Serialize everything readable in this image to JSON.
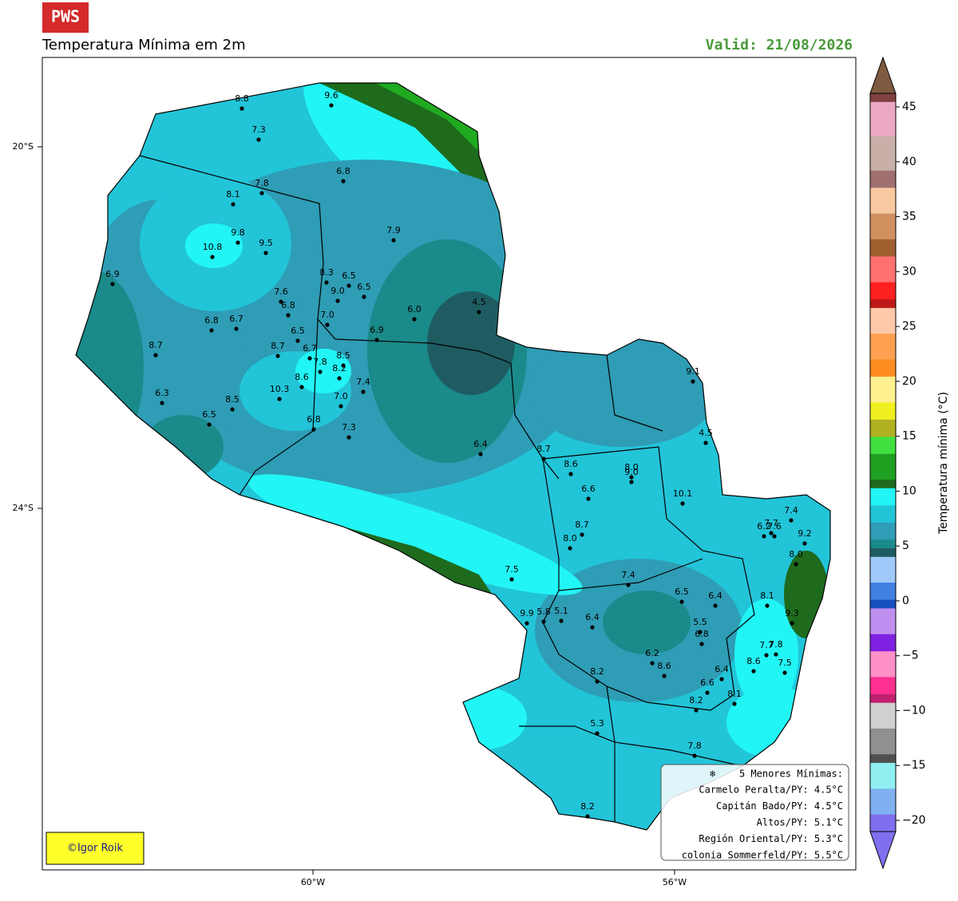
{
  "header": {
    "logo": "PWS",
    "title": "Temperatura Mínima em 2m",
    "valid": "Valid: 21/08/2026"
  },
  "axes": {
    "lat_ticks": [
      "20°S",
      "24°S"
    ],
    "lon_ticks": [
      "60°W",
      "56°W"
    ]
  },
  "colorbar": {
    "label": "Temperatura mínima (°C)",
    "ticks": [
      45,
      40,
      35,
      30,
      25,
      20,
      15,
      10,
      5,
      0,
      {
        "value": -5,
        "label": "−5"
      },
      {
        "value": -10,
        "label": "−10"
      },
      {
        "value": -15,
        "label": "−15"
      },
      {
        "value": -20,
        "label": "−20"
      }
    ]
  },
  "stations": [
    "8.8",
    "9.6",
    "7.3",
    "6.8",
    "7.8",
    "8.1",
    "7.9",
    "9.8",
    "9.5",
    "10.8",
    "6.9",
    "8.3",
    "6.5",
    "6.5",
    "9.0",
    "7.6",
    "6.8",
    "4.5",
    "6.0",
    "7.0",
    "6.8",
    "6.7",
    "6.5",
    "6.9",
    "8.7",
    "8.7",
    "6.7",
    "8.5",
    "7.8",
    "8.2",
    "8.6",
    "9.1",
    "7.4",
    "10.3",
    "6.3",
    "8.5",
    "7.0",
    "6.5",
    "6.8",
    "7.3",
    "4.5",
    "6.4",
    "8.7",
    "8.6",
    "8.0",
    "9.0",
    "6.6",
    "10.1",
    "7.4",
    "7.7",
    "7.6",
    "6.2",
    "8.7",
    "9.2",
    "8.0",
    "8.0",
    "7.5",
    "7.4",
    "6.5",
    "6.4",
    "8.1",
    "5.1",
    "5.8",
    "9.9",
    "9.3",
    "6.4",
    "5.5",
    "6.8",
    "7.7",
    "7.8",
    "6.2",
    "7.5",
    "8.6",
    "8.6",
    "6.4",
    "8.2",
    "6.6",
    "8.1",
    "8.2",
    "5.3",
    "7.8",
    "8.2"
  ],
  "legend": {
    "icon": "❄",
    "title": "5 Menores Mínimas:",
    "entries": [
      "Carmelo Peralta/PY: 4.5°C",
      "Capitán Bado/PY: 4.5°C",
      "Altos/PY: 5.1°C",
      "Región Oriental/PY: 5.3°C",
      "colonia Sommerfeld/PY: 5.5°C"
    ]
  },
  "credit": "©Igor Roik"
}
